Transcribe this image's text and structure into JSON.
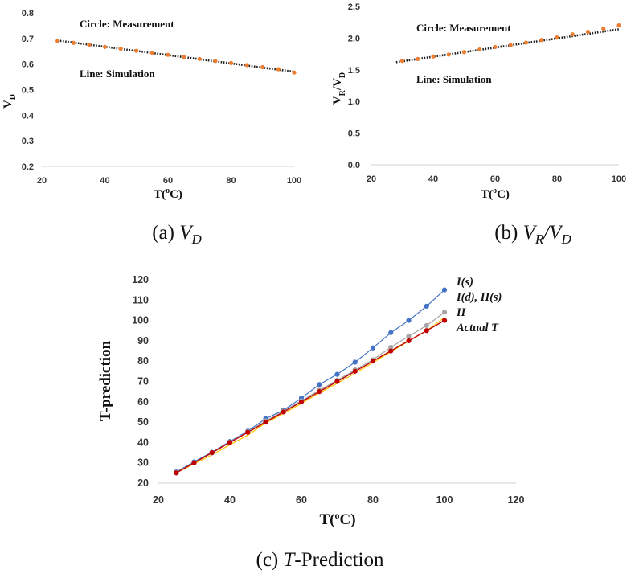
{
  "chart_data": [
    {
      "type": "scatter",
      "caption": "(a) V_D",
      "caption_prefix": "(a)",
      "caption_var": "V",
      "caption_sub": "D",
      "xlabel": "T(°C)",
      "xlabel_parts": [
        "T(",
        "o",
        "C)"
      ],
      "ylabel": "V_D",
      "ylabel_parts": [
        "V",
        "D"
      ],
      "xlim": [
        20,
        100
      ],
      "ylim": [
        0.2,
        0.8
      ],
      "xticks": [
        20,
        40,
        60,
        80,
        100
      ],
      "yticks": [
        "0.2",
        "0.3",
        "0.4",
        "0.5",
        "0.6",
        "0.7",
        "0.8"
      ],
      "annotations": [
        "Circle: Measurement",
        "Line: Simulation"
      ],
      "series": [
        {
          "role": "measurement",
          "color": "#ED7D31",
          "x": [
            25,
            30,
            35,
            40,
            45,
            50,
            55,
            60,
            65,
            70,
            75,
            80,
            85,
            90,
            95,
            100
          ],
          "y": [
            0.69,
            0.683,
            0.675,
            0.667,
            0.66,
            0.652,
            0.644,
            0.636,
            0.628,
            0.62,
            0.612,
            0.604,
            0.596,
            0.588,
            0.58,
            0.567
          ]
        },
        {
          "role": "simulation",
          "color": "#222222",
          "x": [
            25,
            100
          ],
          "y": [
            0.692,
            0.57
          ]
        }
      ]
    },
    {
      "type": "scatter",
      "caption": "(b) V_R/V_D",
      "caption_prefix": "(b)",
      "caption_var1": "V",
      "caption_sub1": "R",
      "caption_slash": "/",
      "caption_var2": "V",
      "caption_sub2": "D",
      "xlabel": "T(°C)",
      "xlabel_parts": [
        "T(",
        "o",
        "C)"
      ],
      "ylabel": "V_R/V_D",
      "ylabel_parts": [
        "V",
        "R",
        "/V",
        "D"
      ],
      "xlim": [
        20,
        100
      ],
      "ylim": [
        0.0,
        2.5
      ],
      "xticks": [
        20,
        40,
        60,
        80,
        100
      ],
      "yticks": [
        "0.0",
        "0.5",
        "1.0",
        "1.5",
        "2.0",
        "2.5"
      ],
      "annotations": [
        "Circle: Measurement",
        "Line: Simulation"
      ],
      "series": [
        {
          "role": "measurement",
          "color": "#ED7D31",
          "x": [
            30,
            35,
            40,
            45,
            50,
            55,
            60,
            65,
            70,
            75,
            80,
            85,
            90,
            95,
            100
          ],
          "y": [
            1.64,
            1.67,
            1.71,
            1.74,
            1.78,
            1.82,
            1.86,
            1.89,
            1.93,
            1.97,
            2.01,
            2.06,
            2.1,
            2.15,
            2.2
          ]
        },
        {
          "role": "simulation",
          "color": "#222222",
          "x": [
            28,
            100
          ],
          "y": [
            1.62,
            2.14
          ]
        }
      ]
    },
    {
      "type": "line",
      "caption": "(c) T-Prediction",
      "caption_prefix": "(c)",
      "caption_var": "T",
      "caption_rest": "-Prediction",
      "xlabel": "T(°C)",
      "xlabel_parts": [
        "T(",
        "o",
        "C)"
      ],
      "ylabel": "T-prediction",
      "xlim": [
        20,
        120
      ],
      "ylim": [
        20,
        120
      ],
      "xticks": [
        20,
        40,
        60,
        80,
        100,
        120
      ],
      "yticks": [
        20,
        30,
        40,
        50,
        60,
        70,
        80,
        90,
        100,
        110,
        120
      ],
      "legend_position": "top-right, at line ends",
      "x": [
        25,
        30,
        35,
        40,
        45,
        50,
        55,
        60,
        65,
        70,
        75,
        80,
        85,
        90,
        95,
        100
      ],
      "series": [
        {
          "name": "I(s)",
          "name_parts": [
            "I(",
            "s",
            ")"
          ],
          "color": "#4472C4",
          "values": [
            25.5,
            30.5,
            35.2,
            40.5,
            45.6,
            51.7,
            55.9,
            61.8,
            68.5,
            73.5,
            79.5,
            86.5,
            94,
            100,
            107,
            115
          ]
        },
        {
          "name": "I(d), II(s)",
          "name_parts": [
            "I(d), II(s)"
          ],
          "color": "#A5A5A5",
          "values": [
            25.2,
            30.1,
            34.8,
            40.2,
            45.3,
            50.6,
            55.4,
            60.5,
            65.7,
            70.6,
            75.7,
            80.7,
            86.8,
            92.2,
            97.5,
            104
          ]
        },
        {
          "name": "II",
          "name_parts": [
            "II"
          ],
          "color": "#FFC000",
          "values": [
            25,
            29.5,
            33.9,
            38.9,
            43.6,
            49.6,
            54.2,
            59.2,
            64.3,
            69.1,
            74,
            79.3,
            84.6,
            89.8,
            95,
            101.5
          ]
        },
        {
          "name": "Actual T",
          "name_parts": [
            "Actual T"
          ],
          "color": "#C00000",
          "values": [
            25,
            30,
            35,
            40,
            45,
            50,
            55,
            60,
            65,
            70,
            75,
            80,
            85,
            90,
            95,
            100
          ]
        }
      ]
    }
  ]
}
